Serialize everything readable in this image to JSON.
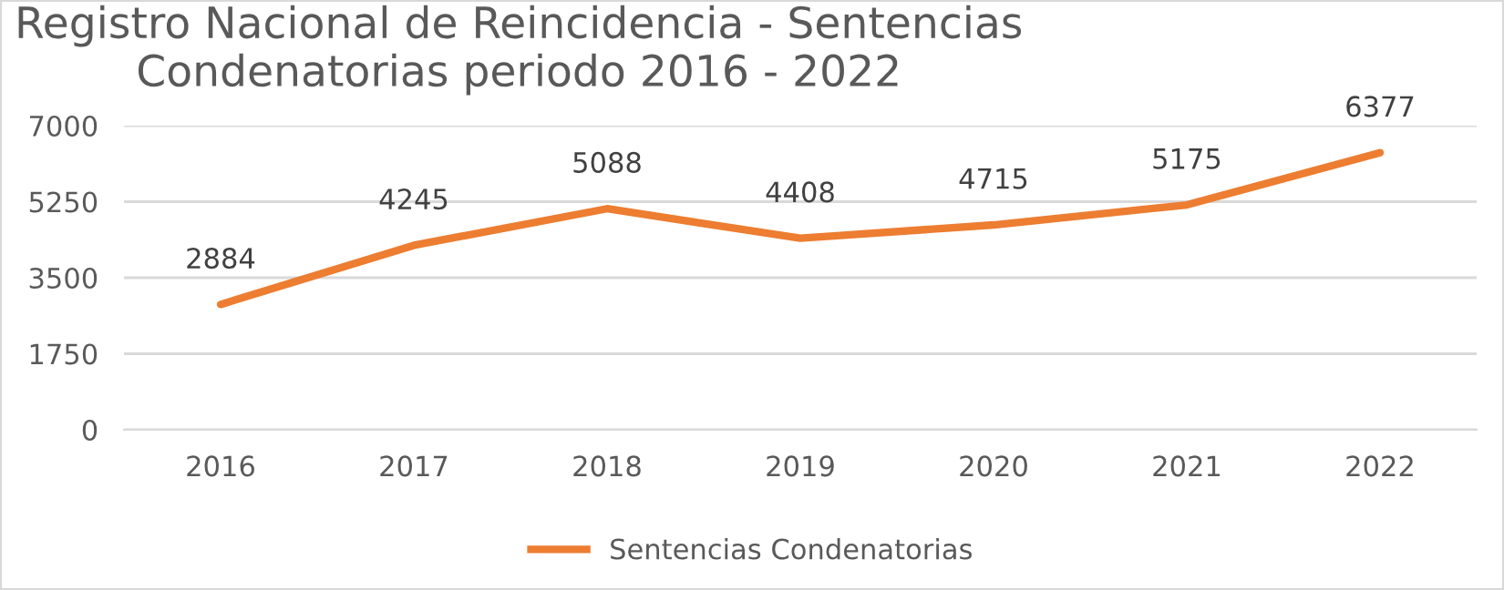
{
  "chart_data": {
    "type": "line",
    "title": "Registro Nacional de Reincidencia - Sentencias\nCondenatorias periodo 2016 - 2022",
    "categories": [
      "2016",
      "2017",
      "2018",
      "2019",
      "2020",
      "2021",
      "2022"
    ],
    "series": [
      {
        "name": "Sentencias Condenatorias",
        "color": "#ed7d31",
        "values": [
          2884,
          4245,
          5088,
          4408,
          4715,
          5175,
          6377
        ]
      }
    ],
    "ylim": [
      0,
      7000
    ],
    "yticks": [
      0,
      1750,
      3500,
      5250,
      7000
    ],
    "grid": "y",
    "legend": "bottom",
    "data_labels": true,
    "marker": "none",
    "line_style": "solid"
  }
}
